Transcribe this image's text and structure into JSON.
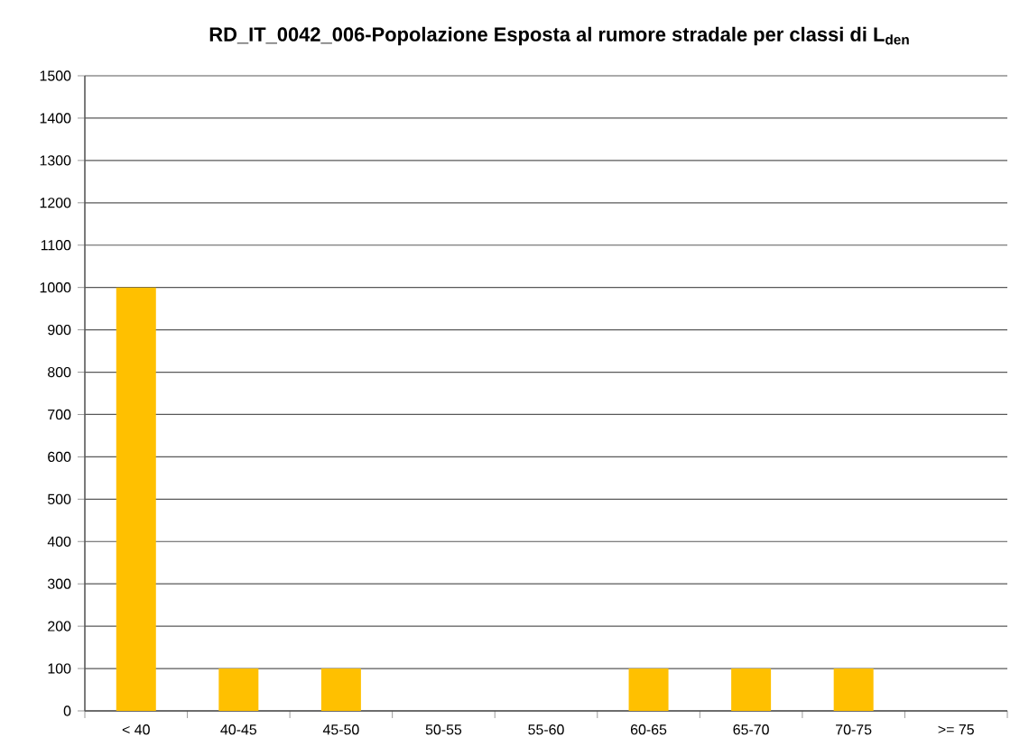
{
  "chart_data": {
    "type": "bar",
    "title": "RD_IT_0042_006-Popolazione Esposta al rumore stradale per classi di L$_{den}$",
    "categories": [
      "< 40",
      "40-45",
      "45-50",
      "50-55",
      "55-60",
      "60-65",
      "65-70",
      "70-75",
      ">= 75"
    ],
    "values": [
      1000,
      100,
      100,
      0,
      0,
      100,
      100,
      100,
      0
    ],
    "color": "#ffc000",
    "ylim": [
      0,
      1500
    ],
    "yticks": [
      0,
      100,
      200,
      300,
      400,
      500,
      600,
      700,
      800,
      900,
      1000,
      1100,
      1200,
      1300,
      1400,
      1500
    ],
    "grid": "y"
  }
}
